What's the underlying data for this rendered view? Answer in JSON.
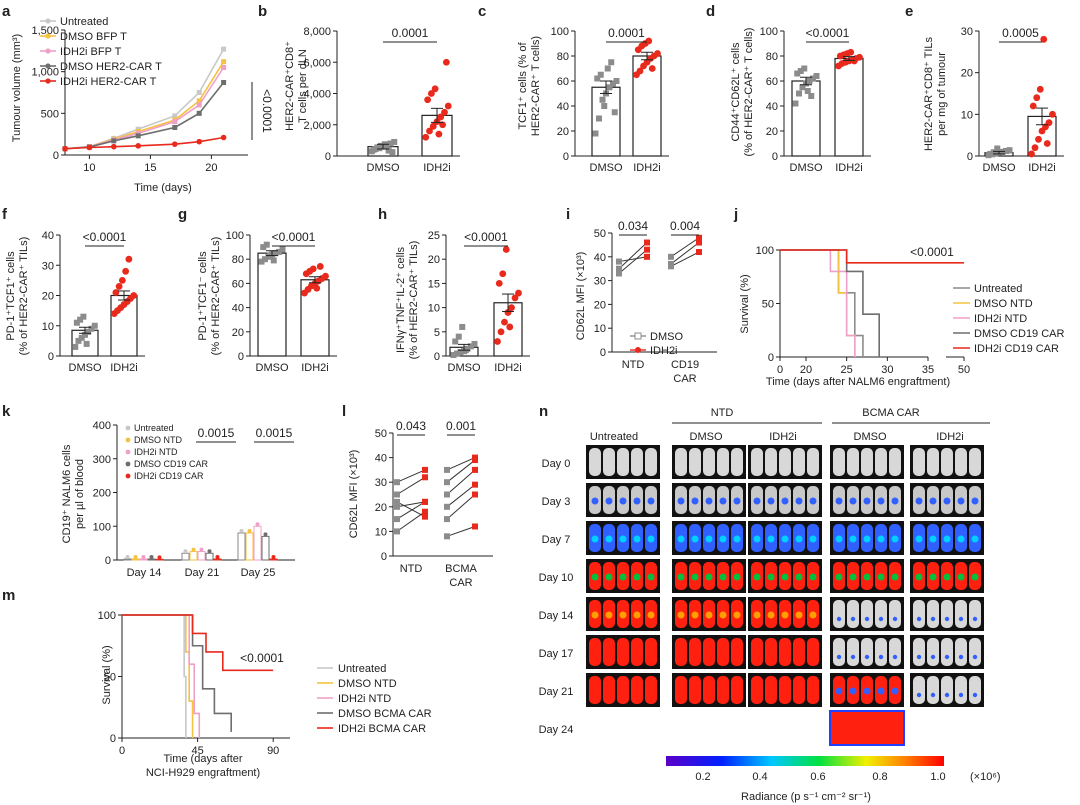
{
  "colors": {
    "red": "#e8291c",
    "grey": "#8c8c8c",
    "lightgrey": "#c8c8c8",
    "orange": "#f5c242",
    "pink": "#f0a0c8",
    "dark": "#6e6e6e"
  },
  "panel_labels": {
    "a": "a",
    "b": "b",
    "c": "c",
    "d": "d",
    "e": "e",
    "f": "f",
    "g": "g",
    "h": "h",
    "i": "i",
    "j": "j",
    "k": "k",
    "l": "l",
    "m": "m",
    "n": "n"
  },
  "chart_data": [
    {
      "id": "a",
      "type": "line",
      "xlabel": "Time (days)",
      "ylabel": "Tumour volume (mm³)",
      "xlim": [
        8,
        23
      ],
      "ylim": [
        0,
        1500
      ],
      "xticks": [
        10,
        15,
        20
      ],
      "yticks": [
        0,
        500,
        1000,
        1500
      ],
      "ytick_labels": [
        "0",
        "500",
        "1,000",
        "1,500"
      ],
      "x": [
        8,
        10,
        12,
        14,
        17,
        19,
        21
      ],
      "series": [
        {
          "name": "Untreated",
          "color": "#c8c8c8",
          "values": [
            75,
            100,
            200,
            310,
            470,
            750,
            1270
          ]
        },
        {
          "name": "DMSO BFP T",
          "color": "#f5c242",
          "values": [
            75,
            100,
            190,
            280,
            420,
            650,
            1120
          ]
        },
        {
          "name": "IDH2i BFP T",
          "color": "#f0a0c8",
          "values": [
            75,
            100,
            180,
            260,
            400,
            600,
            1050
          ]
        },
        {
          "name": "DMSO HER2-CAR T",
          "color": "#6e6e6e",
          "values": [
            75,
            95,
            170,
            230,
            330,
            500,
            870
          ]
        },
        {
          "name": "IDH2i HER2-CAR T",
          "color": "#e8291c",
          "values": [
            75,
            90,
            100,
            110,
            130,
            160,
            210
          ]
        }
      ],
      "pvalue": "<0.0001"
    },
    {
      "id": "b",
      "type": "bar",
      "ylabel": "HER2-CAR⁺CD8⁺ T cells per dLN",
      "categories": [
        "DMSO",
        "IDH2i"
      ],
      "values": [
        600,
        2600
      ],
      "sem": [
        150,
        450
      ],
      "ylim": [
        0,
        8000
      ],
      "yticks": [
        0,
        2000,
        4000,
        6000,
        8000
      ],
      "ytick_labels": [
        "0",
        "2,000",
        "4,000",
        "6,000",
        "8,000"
      ],
      "points": [
        [
          300,
          450,
          500,
          600,
          700,
          800,
          900,
          400,
          550,
          650,
          750,
          350,
          250
        ],
        [
          1200,
          1600,
          1900,
          2200,
          2500,
          2800,
          3200,
          3600,
          4000,
          4300,
          1400,
          2000,
          6000
        ]
      ],
      "pvalue": "0.0001"
    },
    {
      "id": "c",
      "type": "bar",
      "ylabel": "TCF1⁺ cells (% of HER2-CAR⁺ T cells)",
      "categories": [
        "DMSO",
        "IDH2i"
      ],
      "values": [
        55,
        80
      ],
      "sem": [
        5,
        3
      ],
      "ylim": [
        0,
        100
      ],
      "yticks": [
        0,
        20,
        40,
        60,
        80,
        100
      ],
      "ytick_labels": [
        "0",
        "20",
        "40",
        "60",
        "80",
        "100"
      ],
      "points": [
        [
          18,
          30,
          45,
          50,
          55,
          58,
          60,
          62,
          65,
          40,
          70,
          75,
          35
        ],
        [
          65,
          68,
          72,
          75,
          78,
          80,
          82,
          85,
          88,
          90,
          92,
          70
        ]
      ],
      "pvalue": "0.0001"
    },
    {
      "id": "d",
      "type": "bar",
      "ylabel": "CD44⁺CD62L⁺ cells (% of HER2-CAR⁺ T cells)",
      "categories": [
        "DMSO",
        "IDH2i"
      ],
      "values": [
        60,
        78
      ],
      "sem": [
        3,
        1.5
      ],
      "ylim": [
        0,
        100
      ],
      "yticks": [
        0,
        20,
        40,
        60,
        80,
        100
      ],
      "ytick_labels": [
        "0",
        "20",
        "40",
        "60",
        "80",
        "100"
      ],
      "points": [
        [
          42,
          50,
          55,
          58,
          60,
          62,
          64,
          66,
          68,
          70,
          52,
          48
        ],
        [
          72,
          74,
          75,
          76,
          77,
          78,
          79,
          80,
          81,
          82,
          83,
          76
        ]
      ],
      "pvalue": "<0.0001"
    },
    {
      "id": "e",
      "type": "bar",
      "ylabel": "HER2-CAR⁺CD8⁺ TILs per mg of tumour",
      "categories": [
        "DMSO",
        "IDH2i"
      ],
      "values": [
        0.8,
        9.5
      ],
      "sem": [
        0.3,
        2
      ],
      "ylim": [
        0,
        30
      ],
      "yticks": [
        0,
        10,
        20,
        30
      ],
      "ytick_labels": [
        "0",
        "10",
        "20",
        "30"
      ],
      "points": [
        [
          0.2,
          0.4,
          0.6,
          0.8,
          1,
          1.2,
          1.4,
          0.5,
          0.9,
          1.8
        ],
        [
          0.5,
          2,
          4,
          6,
          7,
          8,
          10,
          12,
          14,
          16,
          28,
          3
        ]
      ],
      "pvalue": "0.0005"
    },
    {
      "id": "f",
      "type": "bar",
      "ylabel": "PD-1⁺TCF1⁺ cells (% of HER2-CAR⁺ TILs)",
      "categories": [
        "DMSO",
        "IDH2i"
      ],
      "values": [
        8.5,
        20
      ],
      "sem": [
        1,
        1.5
      ],
      "ylim": [
        0,
        40
      ],
      "yticks": [
        0,
        10,
        20,
        30,
        40
      ],
      "ytick_labels": [
        "0",
        "10",
        "20",
        "30",
        "40"
      ],
      "points": [
        [
          3,
          5,
          6,
          7,
          8,
          9,
          10,
          11,
          12,
          13,
          4
        ],
        [
          14,
          15,
          16,
          17,
          18,
          19,
          20,
          21,
          23,
          25,
          28,
          32
        ]
      ],
      "pvalue": "<0.0001"
    },
    {
      "id": "g",
      "type": "bar",
      "ylabel": "PD-1⁺TCF1⁻ cells (% of HER2-CAR⁺ TILs)",
      "categories": [
        "DMSO",
        "IDH2i"
      ],
      "values": [
        85,
        63
      ],
      "sem": [
        2,
        2.5
      ],
      "ylim": [
        0,
        100
      ],
      "yticks": [
        0,
        20,
        40,
        60,
        80,
        100
      ],
      "ytick_labels": [
        "0",
        "20",
        "40",
        "60",
        "80",
        "100"
      ],
      "points": [
        [
          78,
          80,
          82,
          84,
          85,
          86,
          88,
          90,
          92,
          83,
          79
        ],
        [
          52,
          55,
          58,
          60,
          62,
          64,
          66,
          68,
          70,
          72,
          56,
          74
        ]
      ],
      "pvalue": "<0.0001"
    },
    {
      "id": "h",
      "type": "bar",
      "ylabel": "IFNγ⁺TNF⁺IL-2⁺ cells (% of HER2-CAR⁺ TILs)",
      "categories": [
        "DMSO",
        "IDH2i"
      ],
      "values": [
        1.8,
        11
      ],
      "sem": [
        0.6,
        1.8
      ],
      "ylim": [
        0,
        25
      ],
      "yticks": [
        0,
        5,
        10,
        15,
        20,
        25
      ],
      "ytick_labels": [
        "0",
        "5",
        "10",
        "15",
        "20",
        "25"
      ],
      "points": [
        [
          0.2,
          0.5,
          0.8,
          1,
          1.5,
          2,
          2.5,
          3,
          4,
          6,
          1.2
        ],
        [
          3,
          5,
          7,
          9,
          10,
          12,
          13,
          15,
          17,
          22,
          6
        ]
      ],
      "pvalue": "<0.0001"
    },
    {
      "id": "i",
      "type": "scatter",
      "ylabel": "CD62L MFI (×10³)",
      "groups": [
        "NTD",
        "CD19 CAR"
      ],
      "ylim": [
        0,
        50
      ],
      "yticks": [
        0,
        10,
        20,
        30,
        40,
        50
      ],
      "ytick_labels": [
        "0",
        "10",
        "20",
        "30",
        "40",
        "50"
      ],
      "pairs": [
        [
          [
            33,
            43
          ],
          [
            35,
            46
          ],
          [
            38,
            40
          ]
        ],
        [
          [
            36,
            42
          ],
          [
            37,
            46
          ],
          [
            40,
            48
          ]
        ]
      ],
      "pvalues": [
        "0.034",
        "0.004"
      ],
      "series": [
        {
          "name": "DMSO",
          "color": "#8c8c8c"
        },
        {
          "name": "IDH2i",
          "color": "#e8291c"
        }
      ]
    },
    {
      "id": "j",
      "type": "line",
      "ylabel": "Survival (%)",
      "xlabel": "Time (days after NALM6 engraftment)",
      "xticks": [
        0,
        20,
        25,
        30,
        35,
        50
      ],
      "ylim": [
        0,
        100
      ],
      "yticks": [
        0,
        50,
        100
      ],
      "ytick_labels": [
        "0",
        "50",
        "100"
      ],
      "series": [
        {
          "name": "Untreated",
          "color": "#8c8c8c",
          "x": [
            0,
            22,
            24,
            26,
            27
          ],
          "values": [
            100,
            100,
            60,
            20,
            0
          ]
        },
        {
          "name": "DMSO NTD",
          "color": "#f5c242",
          "x": [
            0,
            22,
            24,
            25,
            26
          ],
          "values": [
            100,
            100,
            60,
            20,
            0
          ]
        },
        {
          "name": "IDH2i NTD",
          "color": "#f0a0c8",
          "x": [
            0,
            22,
            23,
            25,
            26
          ],
          "values": [
            100,
            100,
            80,
            20,
            0
          ]
        },
        {
          "name": "DMSO CD19 CAR",
          "color": "#6e6e6e",
          "x": [
            0,
            22,
            25,
            27,
            29
          ],
          "values": [
            100,
            100,
            80,
            40,
            0
          ]
        },
        {
          "name": "IDH2i CD19 CAR",
          "color": "#e8291c",
          "x": [
            0,
            25,
            50
          ],
          "values": [
            100,
            88,
            88
          ]
        }
      ],
      "pvalue": "<0.0001"
    },
    {
      "id": "k",
      "type": "bar",
      "ylabel": "CD19⁺ NALM6 cells per µl of blood",
      "categories": [
        "Day 14",
        "Day 21",
        "Day 25"
      ],
      "ylim": [
        0,
        400
      ],
      "yticks": [
        0,
        100,
        200,
        300,
        400
      ],
      "ytick_labels": [
        "0",
        "100",
        "200",
        "300",
        "400"
      ],
      "series": [
        {
          "name": "Untreated",
          "color": "#c8c8c8",
          "values": [
            3,
            20,
            80
          ]
        },
        {
          "name": "DMSO NTD",
          "color": "#f5c242",
          "values": [
            3,
            25,
            80
          ]
        },
        {
          "name": "IDH2i NTD",
          "color": "#f0a0c8",
          "values": [
            3,
            25,
            100
          ]
        },
        {
          "name": "DMSO CD19 CAR",
          "color": "#6e6e6e",
          "values": [
            3,
            20,
            70
          ]
        },
        {
          "name": "IDH2i CD19 CAR",
          "color": "#e8291c",
          "values": [
            2,
            3,
            3
          ]
        }
      ],
      "pvalues": [
        "0.0015",
        "0.0015"
      ]
    },
    {
      "id": "l",
      "type": "scatter",
      "ylabel": "CD62L MFI (×10³)",
      "groups": [
        "NTD",
        "BCMA CAR"
      ],
      "ylim": [
        0,
        50
      ],
      "yticks": [
        0,
        10,
        20,
        30,
        40,
        50
      ],
      "ytick_labels": [
        "0",
        "10",
        "20",
        "30",
        "40",
        "50"
      ],
      "pairs": [
        [
          [
            30,
            35
          ],
          [
            25,
            32
          ],
          [
            20,
            22
          ],
          [
            15,
            22
          ],
          [
            10,
            18
          ],
          [
            22,
            16
          ]
        ],
        [
          [
            35,
            40
          ],
          [
            30,
            39
          ],
          [
            25,
            35
          ],
          [
            20,
            29
          ],
          [
            15,
            25
          ],
          [
            8,
            12
          ]
        ]
      ],
      "pvalues": [
        "0.043",
        "0.001"
      ]
    },
    {
      "id": "m",
      "type": "line",
      "ylabel": "Survival (%)",
      "xlabel": "Time (days after NCI-H929 engraftment)",
      "xticks": [
        0,
        45,
        90
      ],
      "ylim": [
        0,
        100
      ],
      "yticks": [
        0,
        50,
        100
      ],
      "ytick_labels": [
        "0",
        "50",
        "100"
      ],
      "series": [
        {
          "name": "Untreated",
          "color": "#c8c8c8",
          "x": [
            0,
            35,
            37,
            38
          ],
          "values": [
            100,
            100,
            50,
            0
          ]
        },
        {
          "name": "DMSO NTD",
          "color": "#f5c242",
          "x": [
            0,
            36,
            38,
            40,
            42
          ],
          "values": [
            100,
            100,
            70,
            30,
            0
          ]
        },
        {
          "name": "IDH2i NTD",
          "color": "#f0a0c8",
          "x": [
            0,
            37,
            40,
            43,
            46
          ],
          "values": [
            100,
            100,
            60,
            20,
            0
          ]
        },
        {
          "name": "DMSO BCMA CAR",
          "color": "#6e6e6e",
          "x": [
            0,
            38,
            42,
            48,
            55,
            65
          ],
          "values": [
            100,
            100,
            75,
            40,
            20,
            5
          ]
        },
        {
          "name": "IDH2i BCMA CAR",
          "color": "#e8291c",
          "x": [
            0,
            38,
            42,
            50,
            60,
            90
          ],
          "values": [
            100,
            100,
            85,
            70,
            55,
            55
          ]
        }
      ],
      "pvalue": "<0.0001"
    }
  ],
  "panel_n": {
    "group_labels": [
      "Untreated",
      "NTD",
      "BCMA CAR"
    ],
    "sub_labels": [
      "DMSO",
      "IDH2i",
      "DMSO",
      "IDH2i"
    ],
    "days": [
      "Day 0",
      "Day 3",
      "Day 7",
      "Day 10",
      "Day 14",
      "Day 17",
      "Day 21",
      "Day 24"
    ],
    "colorbar": {
      "ticks": [
        "0.2",
        "0.4",
        "0.6",
        "0.8",
        "1.0"
      ],
      "scale": "(×10⁶)",
      "label": "Radiance (p s⁻¹ cm⁻² sr⁻¹)"
    }
  },
  "text": {
    "a_legend": [
      "Untreated",
      "DMSO BFP T",
      "IDH2i BFP T",
      "DMSO HER2-CAR T",
      "IDH2i HER2-CAR T"
    ],
    "b_ylabel_1": "HER2-CAR⁺CD8⁺",
    "b_ylabel_2": "T cells per dLN",
    "c_ylabel_1": "TCF1⁺ cells (% of",
    "c_ylabel_2": "HER2-CAR⁺ T cells)",
    "d_ylabel_1": "CD44⁺CD62L⁺ cells",
    "d_ylabel_2": "(% of HER2-CAR⁺ T cells)",
    "e_ylabel_1": "HER2-CAR⁺CD8⁺ TILs",
    "e_ylabel_2": "per mg of tumour",
    "f_ylabel_1": "PD-1⁺TCF1⁺ cells",
    "f_ylabel_2": "(% of HER2-CAR⁺ TILs)",
    "g_ylabel_1": "PD-1⁺TCF1⁻ cells",
    "g_ylabel_2": "(% of HER2-CAR⁺ TILs)",
    "h_ylabel_1": "IFNγ⁺TNF⁺IL-2⁺ cells",
    "h_ylabel_2": "(% of HER2-CAR⁺ TILs)",
    "i_ylabel": "CD62L MFI (×10³)",
    "j_ylabel": "Survival (%)",
    "j_xlabel": "Time (days after NALM6 engraftment)",
    "j_legend": [
      "Untreated",
      "DMSO NTD",
      "IDH2i NTD",
      "DMSO CD19 CAR",
      "IDH2i CD19 CAR"
    ],
    "k_ylabel_1": "CD19⁺ NALM6 cells",
    "k_ylabel_2": "per µl of blood",
    "l_ylabel": "CD62L MFI (×10³)",
    "m_ylabel": "Survival (%)",
    "m_xlabel_1": "Time (days after",
    "m_xlabel_2": "NCI-H929 engraftment)",
    "m_legend": [
      "Untreated",
      "DMSO NTD",
      "IDH2i NTD",
      "DMSO BCMA CAR",
      "IDH2i BCMA CAR"
    ],
    "i_legend": [
      "DMSO",
      "IDH2i"
    ],
    "k_legend": [
      "Untreated",
      "DMSO NTD",
      "IDH2i NTD",
      "DMSO CD19 CAR",
      "IDH2i CD19 CAR"
    ],
    "a_xlabel": "Time (days)",
    "a_ylabel": "Tumour volume (mm³)"
  }
}
